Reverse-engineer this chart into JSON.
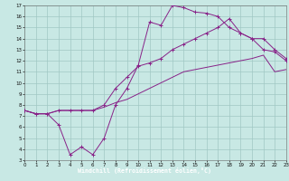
{
  "xlabel": "Windchill (Refroidissement éolien,°C)",
  "bg_color": "#c8e8e4",
  "grid_color": "#a0c8c4",
  "line_color": "#882288",
  "label_bg": "#6a1a6a",
  "xlim": [
    0,
    23
  ],
  "ylim": [
    3,
    17
  ],
  "xticks": [
    0,
    1,
    2,
    3,
    4,
    5,
    6,
    7,
    8,
    9,
    10,
    11,
    12,
    13,
    14,
    15,
    16,
    17,
    18,
    19,
    20,
    21,
    22,
    23
  ],
  "yticks": [
    3,
    4,
    5,
    6,
    7,
    8,
    9,
    10,
    11,
    12,
    13,
    14,
    15,
    16,
    17
  ],
  "line1_x": [
    0,
    1,
    2,
    3,
    4,
    5,
    6,
    7,
    8,
    9,
    10,
    11,
    12,
    13,
    14,
    15,
    16,
    17,
    18,
    19,
    20,
    21,
    22,
    23
  ],
  "line1_y": [
    7.5,
    7.2,
    7.2,
    7.5,
    7.5,
    7.5,
    7.5,
    7.8,
    8.2,
    8.5,
    9.0,
    9.5,
    10.0,
    10.5,
    11.0,
    11.2,
    11.4,
    11.6,
    11.8,
    12.0,
    12.2,
    12.5,
    11.0,
    11.2
  ],
  "line2_x": [
    0,
    1,
    2,
    3,
    4,
    5,
    6,
    7,
    8,
    9,
    10,
    11,
    12,
    13,
    14,
    15,
    16,
    17,
    18,
    19,
    20,
    21,
    22,
    23
  ],
  "line2_y": [
    7.5,
    7.2,
    7.2,
    6.2,
    3.5,
    4.2,
    3.5,
    5.0,
    8.0,
    9.5,
    11.6,
    15.5,
    15.2,
    17.0,
    16.8,
    16.4,
    16.3,
    16.0,
    15.0,
    14.5,
    14.0,
    13.0,
    12.8,
    12.0
  ],
  "line3_x": [
    0,
    1,
    2,
    3,
    4,
    5,
    6,
    7,
    8,
    9,
    10,
    11,
    12,
    13,
    14,
    15,
    16,
    17,
    18,
    19,
    20,
    21,
    22,
    23
  ],
  "line3_y": [
    7.5,
    7.2,
    7.2,
    7.5,
    7.5,
    7.5,
    7.5,
    8.0,
    9.5,
    10.5,
    11.5,
    11.8,
    12.2,
    13.0,
    13.5,
    14.0,
    14.5,
    15.0,
    15.8,
    14.5,
    14.0,
    14.0,
    13.0,
    12.2
  ]
}
